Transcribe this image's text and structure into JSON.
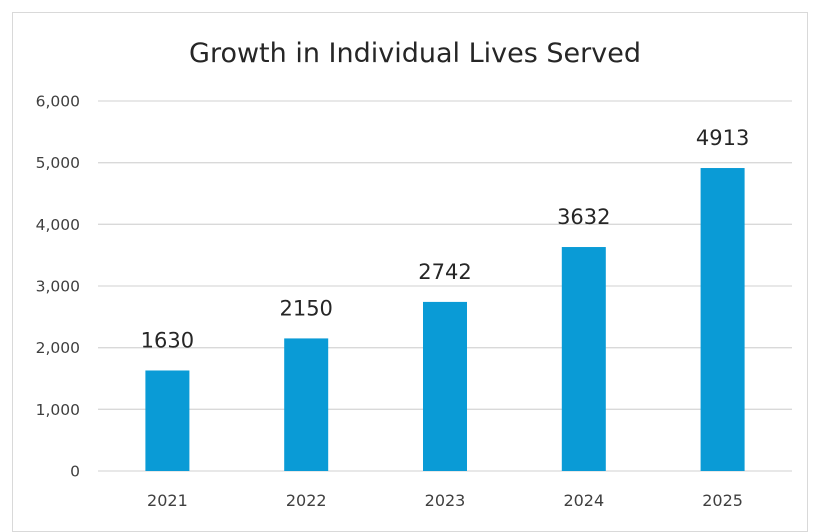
{
  "chart_data": {
    "type": "bar",
    "title": "Growth in Individual Lives Served",
    "categories": [
      "2021",
      "2022",
      "2023",
      "2024",
      "2025"
    ],
    "values": [
      1630,
      2150,
      2742,
      3632,
      4913
    ],
    "data_labels": [
      "1630",
      "2150",
      "2742",
      "3632",
      "4913"
    ],
    "y_ticks": [
      0,
      1000,
      2000,
      3000,
      4000,
      5000,
      6000
    ],
    "y_tick_labels": [
      "0",
      "1,000",
      "2,000",
      "3,000",
      "4,000",
      "5,000",
      "6,000"
    ],
    "ylim": [
      0,
      6000
    ],
    "grid": true,
    "legend": "none",
    "bar_color": "#0a9bd6",
    "grid_color": "#d9d9d9",
    "text_color": "#404040"
  }
}
